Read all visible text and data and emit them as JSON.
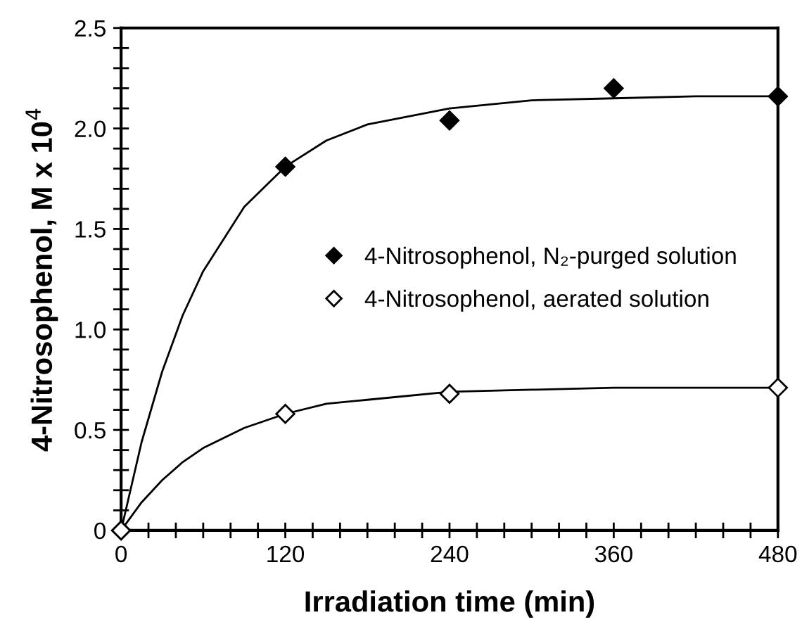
{
  "chart_data": {
    "type": "scatter",
    "xlabel": "Irradiation time (min)",
    "ylabel": "4-Nitrosophenol, M x 10$^{4}$",
    "xlim": [
      0,
      480
    ],
    "ylim": [
      0,
      2.5
    ],
    "xticks": [
      0,
      {
        "value": 20,
        "label": null
      },
      {
        "value": 40,
        "label": null
      },
      {
        "value": 60,
        "label": null
      },
      {
        "value": 80,
        "label": null
      },
      {
        "value": 100,
        "label": null
      },
      120,
      {
        "value": 140,
        "label": null
      },
      {
        "value": 160,
        "label": null
      },
      {
        "value": 180,
        "label": null
      },
      {
        "value": 200,
        "label": null
      },
      {
        "value": 220,
        "label": null
      },
      240,
      {
        "value": 260,
        "label": null
      },
      {
        "value": 280,
        "label": null
      },
      {
        "value": 300,
        "label": null
      },
      {
        "value": 320,
        "label": null
      },
      {
        "value": 340,
        "label": null
      },
      360,
      {
        "value": 380,
        "label": null
      },
      {
        "value": 400,
        "label": null
      },
      {
        "value": 420,
        "label": null
      },
      {
        "value": 440,
        "label": null
      },
      {
        "value": 460,
        "label": null
      },
      480
    ],
    "yticks": [
      0,
      {
        "value": 0.1,
        "label": null
      },
      {
        "value": 0.2,
        "label": null
      },
      {
        "value": 0.3,
        "label": null
      },
      {
        "value": 0.4,
        "label": null
      },
      0.5,
      {
        "value": 0.6,
        "label": null
      },
      {
        "value": 0.7,
        "label": null
      },
      {
        "value": 0.8,
        "label": null
      },
      {
        "value": 0.9,
        "label": null
      },
      {
        "value": 1.0,
        "label": "1.0"
      },
      {
        "value": 1.1,
        "label": null
      },
      {
        "value": 1.2,
        "label": null
      },
      {
        "value": 1.3,
        "label": null
      },
      {
        "value": 1.4,
        "label": null
      },
      1.5,
      {
        "value": 1.6,
        "label": null
      },
      {
        "value": 1.7,
        "label": null
      },
      {
        "value": 1.8,
        "label": null
      },
      {
        "value": 1.9,
        "label": null
      },
      {
        "value": 2.0,
        "label": "2.0"
      },
      {
        "value": 2.1,
        "label": null
      },
      {
        "value": 2.2,
        "label": null
      },
      {
        "value": 2.3,
        "label": null
      },
      {
        "value": 2.4,
        "label": null
      },
      2.5
    ],
    "grid": false,
    "legend": "right",
    "series": [
      {
        "type": "line",
        "color": "#000000",
        "marker": "none",
        "x": [
          0,
          15,
          30,
          45,
          60,
          90,
          120,
          150,
          180,
          240,
          300,
          360,
          420,
          480
        ],
        "values": [
          0,
          0.44,
          0.79,
          1.07,
          1.29,
          1.61,
          1.81,
          1.94,
          2.02,
          2.1,
          2.14,
          2.15,
          2.16,
          2.16
        ]
      },
      {
        "type": "line",
        "color": "#000000",
        "marker": "none",
        "x": [
          0,
          15,
          30,
          45,
          60,
          90,
          120,
          150,
          180,
          240,
          300,
          360,
          420,
          480
        ],
        "values": [
          0,
          0.14,
          0.25,
          0.34,
          0.41,
          0.51,
          0.58,
          0.63,
          0.65,
          0.69,
          0.7,
          0.71,
          0.71,
          0.71
        ]
      },
      {
        "name": "4-Nitrosophenol, N₂-purged solution",
        "color": "#000000",
        "marker": "diamond",
        "x": [
          0,
          120,
          240,
          360,
          480
        ],
        "values": [
          0,
          1.81,
          2.04,
          2.2,
          2.16
        ]
      },
      {
        "name": "4-Nitrosophenol, aerated solution",
        "color": "#ffffff",
        "marker": "diamond",
        "x": [
          0,
          120,
          240,
          480
        ],
        "values": [
          0,
          0.58,
          0.68,
          0.71
        ]
      }
    ]
  }
}
